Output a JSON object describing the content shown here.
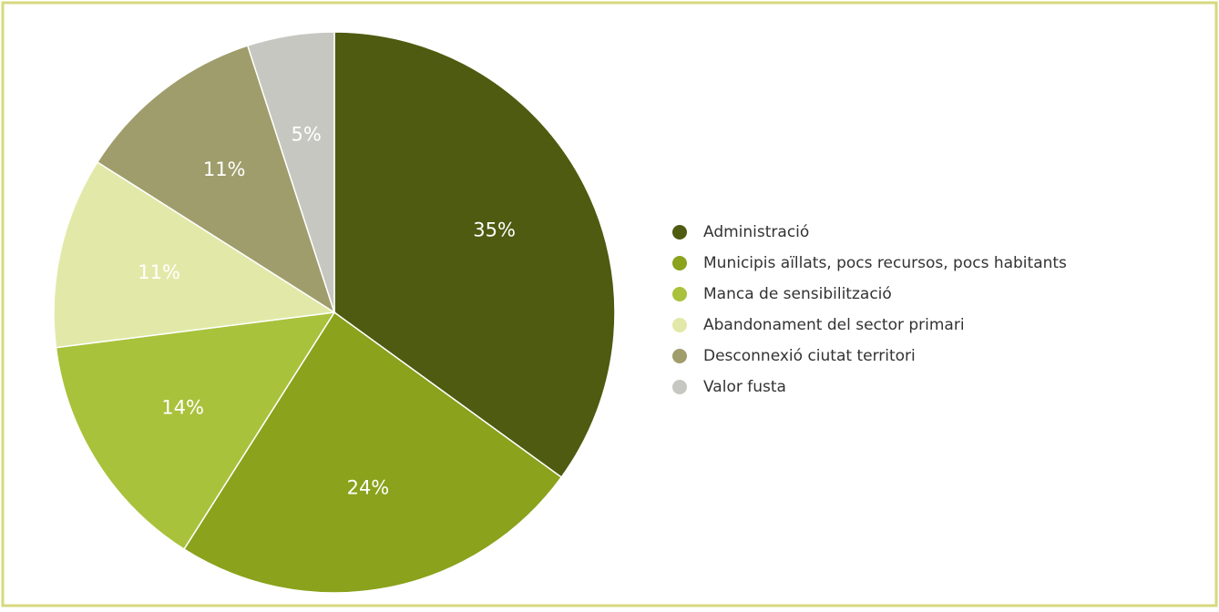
{
  "chart_data": {
    "type": "pie",
    "categories": [
      "Administració",
      "Municipis aïllats, pocs recursos, pocs habitants",
      "Manca de sensibilització",
      "Abandonament del sector primari",
      "Desconnexió ciutat territori",
      "Valor fusta"
    ],
    "values": [
      35,
      24,
      14,
      11,
      11,
      5
    ],
    "value_labels": [
      "35%",
      "24%",
      "14%",
      "11%",
      "11%",
      "5%"
    ],
    "colors": [
      "#4e5b10",
      "#8aa21c",
      "#a8c23b",
      "#e2e9a8",
      "#9f9d6b",
      "#c7c7c1"
    ],
    "legend": "right"
  }
}
